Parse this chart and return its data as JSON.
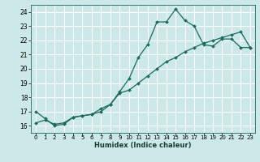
{
  "xlabel": "Humidex (Indice chaleur)",
  "bg_color": "#cce8e8",
  "grid_color": "#ffffff",
  "line_color": "#1a6b5a",
  "marker_color": "#1a6b5a",
  "xlim": [
    -0.5,
    23.5
  ],
  "ylim": [
    15.5,
    24.5
  ],
  "xticks": [
    0,
    1,
    2,
    3,
    4,
    5,
    6,
    7,
    8,
    9,
    10,
    11,
    12,
    13,
    14,
    15,
    16,
    17,
    18,
    19,
    20,
    21,
    22,
    23
  ],
  "yticks": [
    16,
    17,
    18,
    19,
    20,
    21,
    22,
    23,
    24
  ],
  "line1_x": [
    0,
    1,
    2,
    3,
    4,
    5,
    6,
    7,
    8,
    9,
    10,
    11,
    12,
    13,
    14,
    15,
    16,
    17,
    18,
    19,
    20,
    21,
    22,
    23
  ],
  "line1_y": [
    17.0,
    16.5,
    16.0,
    16.1,
    16.6,
    16.7,
    16.8,
    17.0,
    17.5,
    18.4,
    19.3,
    20.8,
    21.7,
    23.3,
    23.3,
    24.2,
    23.4,
    23.0,
    21.7,
    21.6,
    22.1,
    22.1,
    21.5,
    21.5
  ],
  "line2_x": [
    0,
    1,
    2,
    3,
    4,
    5,
    6,
    7,
    8,
    9,
    10,
    11,
    12,
    13,
    14,
    15,
    16,
    17,
    18,
    19,
    20,
    21,
    22,
    23
  ],
  "line2_y": [
    16.2,
    16.4,
    16.1,
    16.2,
    16.6,
    16.7,
    16.8,
    17.2,
    17.5,
    18.3,
    18.5,
    19.0,
    19.5,
    20.0,
    20.5,
    20.8,
    21.2,
    21.5,
    21.8,
    22.0,
    22.2,
    22.4,
    22.6,
    21.5
  ]
}
